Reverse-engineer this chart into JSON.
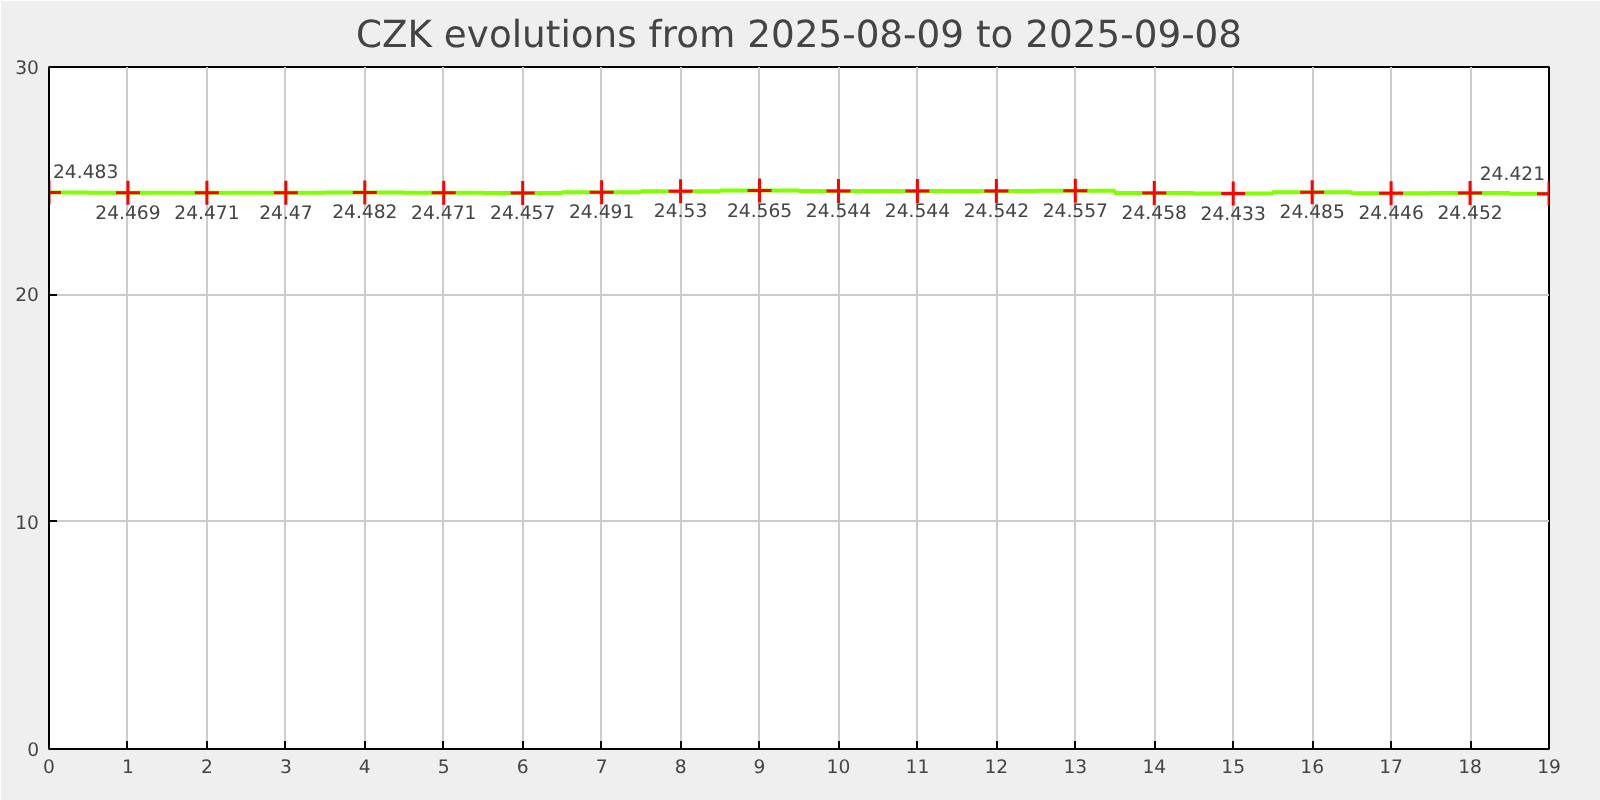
{
  "chart_data": {
    "type": "step",
    "title": "CZK evolutions from 2025-08-09 to 2025-09-08",
    "x": [
      0,
      1,
      2,
      3,
      4,
      5,
      6,
      7,
      8,
      9,
      10,
      11,
      12,
      13,
      14,
      15,
      16,
      17,
      18,
      19
    ],
    "series": [
      {
        "color": "#7fff00",
        "values": [
          24.483,
          24.469,
          24.471,
          24.47,
          24.482,
          24.471,
          24.457,
          24.491,
          24.53,
          24.565,
          24.544,
          24.544,
          24.542,
          24.557,
          24.458,
          24.433,
          24.485,
          24.446,
          24.452,
          24.421
        ]
      }
    ],
    "xlim": [
      0,
      19
    ],
    "xticks": [
      0,
      1,
      2,
      3,
      4,
      5,
      6,
      7,
      8,
      9,
      10,
      11,
      12,
      13,
      14,
      15,
      16,
      17,
      18,
      19
    ],
    "ylim": [
      0,
      30
    ],
    "yticks": [
      0,
      10,
      20,
      30
    ],
    "grid": true,
    "marker": "cross",
    "data_labels": true
  }
}
